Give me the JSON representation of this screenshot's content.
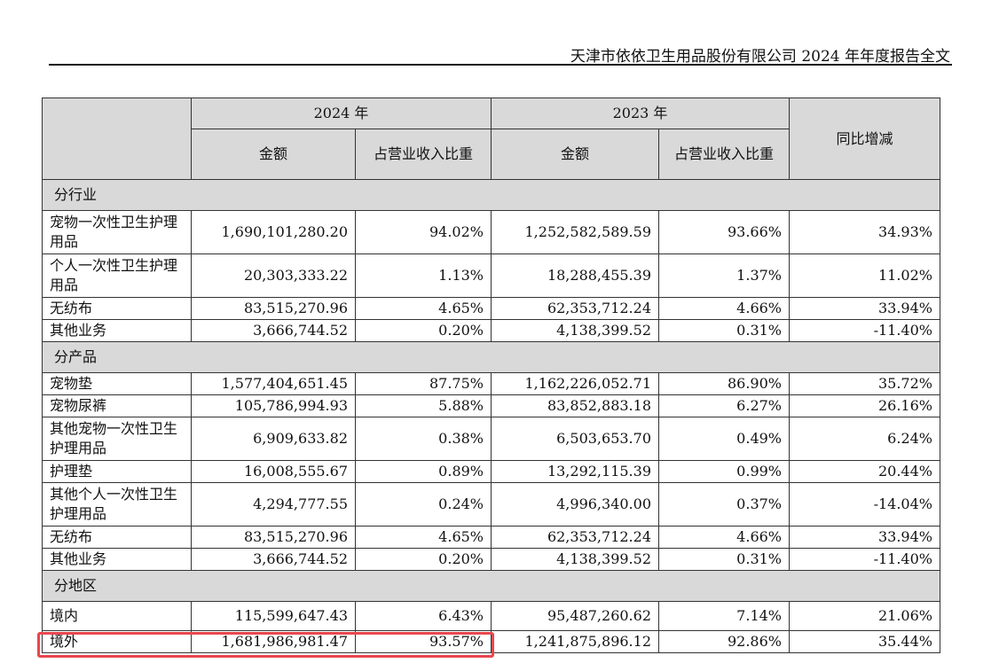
{
  "header": {
    "title": "天津市依依卫生用品股份有限公司 2024 年年度报告全文"
  },
  "table": {
    "year_2024": "2024 年",
    "year_2023": "2023 年",
    "yoy": "同比增减",
    "amount": "金额",
    "ratio": "占营业收入比重",
    "sections": [
      {
        "title": "分行业",
        "rows": [
          {
            "name": "宠物一次性卫生护理用品",
            "a24": "1,690,101,280.20",
            "r24": "94.02%",
            "a23": "1,252,582,589.59",
            "r23": "93.66%",
            "yoy": "34.93%"
          },
          {
            "name": "个人一次性卫生护理用品",
            "a24": "20,303,333.22",
            "r24": "1.13%",
            "a23": "18,288,455.39",
            "r23": "1.37%",
            "yoy": "11.02%"
          },
          {
            "name": "无纺布",
            "a24": "83,515,270.96",
            "r24": "4.65%",
            "a23": "62,353,712.24",
            "r23": "4.66%",
            "yoy": "33.94%"
          },
          {
            "name": "其他业务",
            "a24": "3,666,744.52",
            "r24": "0.20%",
            "a23": "4,138,399.52",
            "r23": "0.31%",
            "yoy": "-11.40%"
          }
        ]
      },
      {
        "title": "分产品",
        "rows": [
          {
            "name": "宠物垫",
            "a24": "1,577,404,651.45",
            "r24": "87.75%",
            "a23": "1,162,226,052.71",
            "r23": "86.90%",
            "yoy": "35.72%"
          },
          {
            "name": "宠物尿裤",
            "a24": "105,786,994.93",
            "r24": "5.88%",
            "a23": "83,852,883.18",
            "r23": "6.27%",
            "yoy": "26.16%"
          },
          {
            "name": "其他宠物一次性卫生护理用品",
            "a24": "6,909,633.82",
            "r24": "0.38%",
            "a23": "6,503,653.70",
            "r23": "0.49%",
            "yoy": "6.24%"
          },
          {
            "name": "护理垫",
            "a24": "16,008,555.67",
            "r24": "0.89%",
            "a23": "13,292,115.39",
            "r23": "0.99%",
            "yoy": "20.44%"
          },
          {
            "name": "其他个人一次性卫生护理用品",
            "a24": "4,294,777.55",
            "r24": "0.24%",
            "a23": "4,996,340.00",
            "r23": "0.37%",
            "yoy": "-14.04%"
          },
          {
            "name": "无纺布",
            "a24": "83,515,270.96",
            "r24": "4.65%",
            "a23": "62,353,712.24",
            "r23": "4.66%",
            "yoy": "33.94%"
          },
          {
            "name": "其他业务",
            "a24": "3,666,744.52",
            "r24": "0.20%",
            "a23": "4,138,399.52",
            "r23": "0.31%",
            "yoy": "-11.40%"
          }
        ]
      },
      {
        "title": "分地区",
        "rows": [
          {
            "name": "境内",
            "a24": "115,599,647.43",
            "r24": "6.43%",
            "a23": "95,487,260.62",
            "r23": "7.14%",
            "yoy": "21.06%"
          },
          {
            "name": "境外",
            "a24": "1,681,986,981.47",
            "r24": "93.57%",
            "a23": "1,241,875,896.12",
            "r23": "92.86%",
            "yoy": "35.44%"
          }
        ]
      }
    ]
  }
}
